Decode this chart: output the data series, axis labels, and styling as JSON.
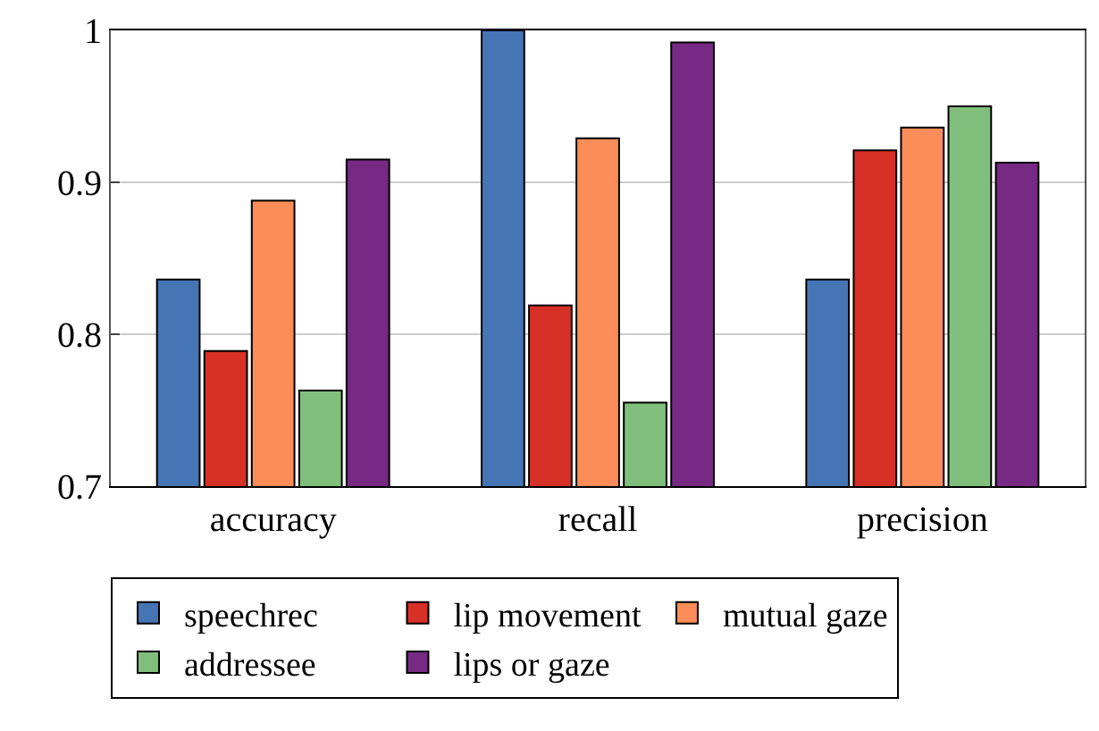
{
  "chart_data": {
    "type": "bar",
    "categories": [
      "accuracy",
      "recall",
      "precision"
    ],
    "series": [
      {
        "name": "speechrec",
        "color": "#4575b4",
        "values": [
          0.836,
          1.0,
          0.836
        ]
      },
      {
        "name": "lip movement",
        "color": "#d73027",
        "values": [
          0.789,
          0.819,
          0.921
        ]
      },
      {
        "name": "mutual gaze",
        "color": "#fc8d59",
        "values": [
          0.888,
          0.929,
          0.936
        ]
      },
      {
        "name": "addressee",
        "color": "#7fbf7b",
        "values": [
          0.763,
          0.755,
          0.95
        ]
      },
      {
        "name": "lips or gaze",
        "color": "#762a83",
        "values": [
          0.915,
          0.992,
          0.913
        ]
      }
    ],
    "ylim": [
      0.7,
      1.0
    ],
    "yticks": [
      0.7,
      0.8,
      0.9,
      1
    ],
    "grid": "y",
    "legend": "bottom"
  }
}
